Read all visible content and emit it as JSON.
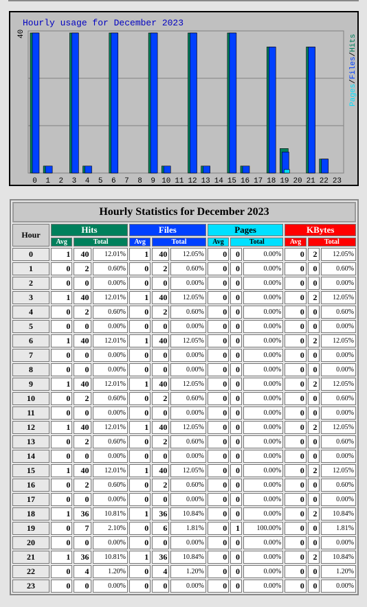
{
  "chart_data": {
    "type": "bar",
    "title": "Hourly usage for December 2023",
    "y_max_label": "40",
    "legend": [
      "Pages",
      "/",
      "Files",
      "/",
      "Hits"
    ],
    "legend_colors": {
      "pages": "#00e0ff",
      "files": "#0040ff",
      "hits": "#00805c"
    },
    "categories": [
      "0",
      "1",
      "2",
      "3",
      "4",
      "5",
      "6",
      "7",
      "8",
      "9",
      "10",
      "11",
      "12",
      "13",
      "14",
      "15",
      "16",
      "17",
      "18",
      "19",
      "20",
      "21",
      "22",
      "23"
    ],
    "series": [
      {
        "name": "Hits",
        "color": "#00805c",
        "values": [
          40,
          2,
          0,
          40,
          2,
          0,
          40,
          0,
          0,
          40,
          2,
          0,
          40,
          2,
          0,
          40,
          2,
          0,
          36,
          7,
          0,
          36,
          4,
          0
        ]
      },
      {
        "name": "Files",
        "color": "#0040ff",
        "values": [
          40,
          2,
          0,
          40,
          2,
          0,
          40,
          0,
          0,
          40,
          2,
          0,
          40,
          2,
          0,
          40,
          2,
          0,
          36,
          6,
          0,
          36,
          4,
          0
        ]
      },
      {
        "name": "Pages",
        "color": "#00e0ff",
        "values": [
          0,
          0,
          0,
          0,
          0,
          0,
          0,
          0,
          0,
          0,
          0,
          0,
          0,
          0,
          0,
          0,
          0,
          0,
          0,
          1,
          0,
          0,
          0,
          0
        ]
      }
    ],
    "ylim": [
      0,
      40
    ]
  },
  "table": {
    "title": "Hourly Statistics for December 2023",
    "hour_header": "Hour",
    "groups": [
      "Hits",
      "Files",
      "Pages",
      "KBytes"
    ],
    "avg_label": "Avg",
    "total_label": "Total",
    "rows": [
      [
        "0",
        "1",
        "40",
        "12.01%",
        "1",
        "40",
        "12.05%",
        "0",
        "0",
        "0.00%",
        "0",
        "2",
        "12.05%"
      ],
      [
        "1",
        "0",
        "2",
        "0.60%",
        "0",
        "2",
        "0.60%",
        "0",
        "0",
        "0.00%",
        "0",
        "0",
        "0.60%"
      ],
      [
        "2",
        "0",
        "0",
        "0.00%",
        "0",
        "0",
        "0.00%",
        "0",
        "0",
        "0.00%",
        "0",
        "0",
        "0.00%"
      ],
      [
        "3",
        "1",
        "40",
        "12.01%",
        "1",
        "40",
        "12.05%",
        "0",
        "0",
        "0.00%",
        "0",
        "2",
        "12.05%"
      ],
      [
        "4",
        "0",
        "2",
        "0.60%",
        "0",
        "2",
        "0.60%",
        "0",
        "0",
        "0.00%",
        "0",
        "0",
        "0.60%"
      ],
      [
        "5",
        "0",
        "0",
        "0.00%",
        "0",
        "0",
        "0.00%",
        "0",
        "0",
        "0.00%",
        "0",
        "0",
        "0.00%"
      ],
      [
        "6",
        "1",
        "40",
        "12.01%",
        "1",
        "40",
        "12.05%",
        "0",
        "0",
        "0.00%",
        "0",
        "2",
        "12.05%"
      ],
      [
        "7",
        "0",
        "0",
        "0.00%",
        "0",
        "0",
        "0.00%",
        "0",
        "0",
        "0.00%",
        "0",
        "0",
        "0.00%"
      ],
      [
        "8",
        "0",
        "0",
        "0.00%",
        "0",
        "0",
        "0.00%",
        "0",
        "0",
        "0.00%",
        "0",
        "0",
        "0.00%"
      ],
      [
        "9",
        "1",
        "40",
        "12.01%",
        "1",
        "40",
        "12.05%",
        "0",
        "0",
        "0.00%",
        "0",
        "2",
        "12.05%"
      ],
      [
        "10",
        "0",
        "2",
        "0.60%",
        "0",
        "2",
        "0.60%",
        "0",
        "0",
        "0.00%",
        "0",
        "0",
        "0.60%"
      ],
      [
        "11",
        "0",
        "0",
        "0.00%",
        "0",
        "0",
        "0.00%",
        "0",
        "0",
        "0.00%",
        "0",
        "0",
        "0.00%"
      ],
      [
        "12",
        "1",
        "40",
        "12.01%",
        "1",
        "40",
        "12.05%",
        "0",
        "0",
        "0.00%",
        "0",
        "2",
        "12.05%"
      ],
      [
        "13",
        "0",
        "2",
        "0.60%",
        "0",
        "2",
        "0.60%",
        "0",
        "0",
        "0.00%",
        "0",
        "0",
        "0.60%"
      ],
      [
        "14",
        "0",
        "0",
        "0.00%",
        "0",
        "0",
        "0.00%",
        "0",
        "0",
        "0.00%",
        "0",
        "0",
        "0.00%"
      ],
      [
        "15",
        "1",
        "40",
        "12.01%",
        "1",
        "40",
        "12.05%",
        "0",
        "0",
        "0.00%",
        "0",
        "2",
        "12.05%"
      ],
      [
        "16",
        "0",
        "2",
        "0.60%",
        "0",
        "2",
        "0.60%",
        "0",
        "0",
        "0.00%",
        "0",
        "0",
        "0.60%"
      ],
      [
        "17",
        "0",
        "0",
        "0.00%",
        "0",
        "0",
        "0.00%",
        "0",
        "0",
        "0.00%",
        "0",
        "0",
        "0.00%"
      ],
      [
        "18",
        "1",
        "36",
        "10.81%",
        "1",
        "36",
        "10.84%",
        "0",
        "0",
        "0.00%",
        "0",
        "2",
        "10.84%"
      ],
      [
        "19",
        "0",
        "7",
        "2.10%",
        "0",
        "6",
        "1.81%",
        "0",
        "1",
        "100.00%",
        "0",
        "0",
        "1.81%"
      ],
      [
        "20",
        "0",
        "0",
        "0.00%",
        "0",
        "0",
        "0.00%",
        "0",
        "0",
        "0.00%",
        "0",
        "0",
        "0.00%"
      ],
      [
        "21",
        "1",
        "36",
        "10.81%",
        "1",
        "36",
        "10.84%",
        "0",
        "0",
        "0.00%",
        "0",
        "2",
        "10.84%"
      ],
      [
        "22",
        "0",
        "4",
        "1.20%",
        "0",
        "4",
        "1.20%",
        "0",
        "0",
        "0.00%",
        "0",
        "0",
        "1.20%"
      ],
      [
        "23",
        "0",
        "0",
        "0.00%",
        "0",
        "0",
        "0.00%",
        "0",
        "0",
        "0.00%",
        "0",
        "0",
        "0.00%"
      ]
    ]
  }
}
